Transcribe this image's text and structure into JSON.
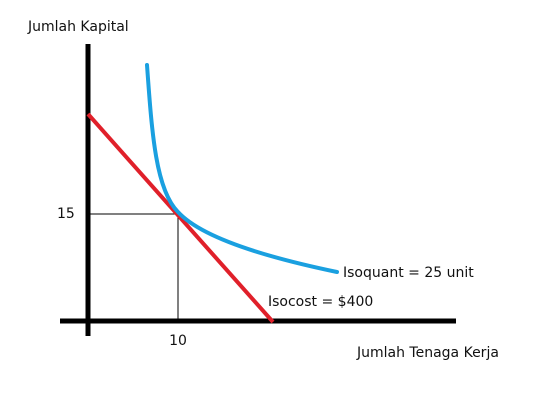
{
  "axes": {
    "y_label": "Jumlah Kapital",
    "x_label": "Jumlah Tenaga Kerja",
    "y_tick": "15",
    "x_tick": "10"
  },
  "curves": {
    "isoquant": "Isoquant = 25 unit",
    "isocost": "Isocost = $400"
  }
}
